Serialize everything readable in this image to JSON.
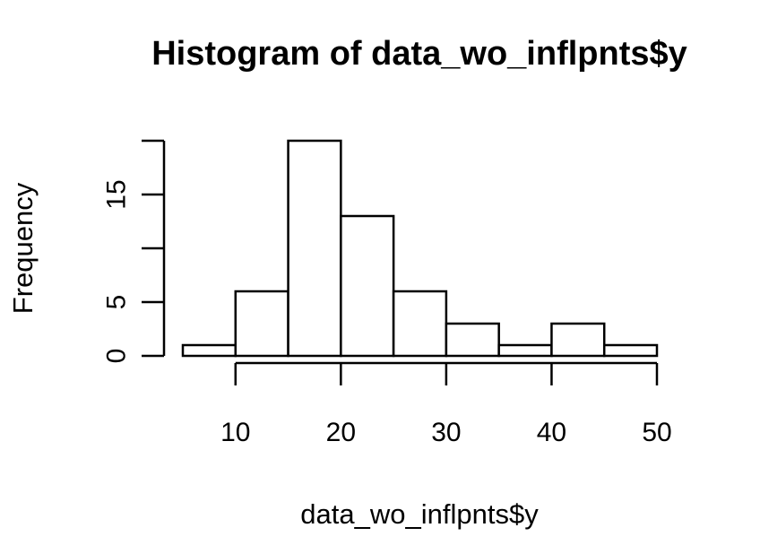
{
  "chart_data": {
    "type": "bar",
    "title": "Histogram of data_wo_inflpnts$y",
    "xlabel": "data_wo_inflpnts$y",
    "ylabel": "Frequency",
    "bins": [
      {
        "from": 5,
        "to": 10,
        "count": 1
      },
      {
        "from": 10,
        "to": 15,
        "count": 6
      },
      {
        "from": 15,
        "to": 20,
        "count": 20
      },
      {
        "from": 20,
        "to": 25,
        "count": 13
      },
      {
        "from": 25,
        "to": 30,
        "count": 6
      },
      {
        "from": 30,
        "to": 35,
        "count": 3
      },
      {
        "from": 35,
        "to": 40,
        "count": 1
      },
      {
        "from": 40,
        "to": 45,
        "count": 3
      },
      {
        "from": 45,
        "to": 50,
        "count": 1
      }
    ],
    "xlim": [
      5,
      50
    ],
    "ylim": [
      0,
      20
    ],
    "x_ticks": [
      10,
      20,
      30,
      40,
      50
    ],
    "y_ticks": [
      0,
      5,
      10,
      15,
      20
    ],
    "y_tick_labels": [
      "0",
      "5",
      "",
      "15",
      ""
    ],
    "grid": false
  }
}
